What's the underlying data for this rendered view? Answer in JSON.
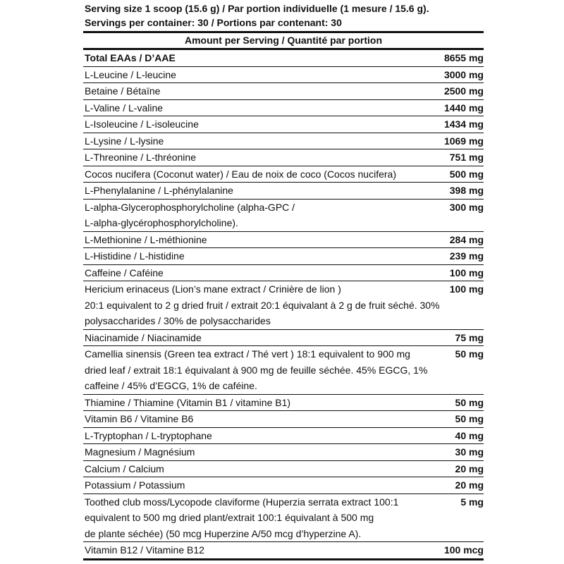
{
  "serving": {
    "size": "Serving size 1 scoop (15.6 g) / Par portion individuelle (1 mesure / 15.6 g).",
    "per_container": "Servings per container: 30 / Portions par contenant: 30"
  },
  "table": {
    "header": "Amount per Serving / Quantité par portion",
    "rows": [
      {
        "name": [
          "Total EAAs / D’AAE"
        ],
        "amount": "8655 mg"
      },
      {
        "name": [
          "L-Leucine / L-leucine"
        ],
        "amount": "3000 mg"
      },
      {
        "name": [
          "Betaine / Bétaïne"
        ],
        "amount": "2500 mg"
      },
      {
        "name": [
          "L-Valine / L-valine"
        ],
        "amount": "1440 mg"
      },
      {
        "name": [
          "L-Isoleucine / L-isoleucine"
        ],
        "amount": "1434 mg"
      },
      {
        "name": [
          "L-Lysine / L-lysine"
        ],
        "amount": "1069 mg"
      },
      {
        "name": [
          "L-Threonine / L-thréonine"
        ],
        "amount": "751 mg"
      },
      {
        "name": [
          "Cocos nucifera (Coconut water) / Eau de noix de coco (Cocos nucifera)"
        ],
        "amount": "500 mg"
      },
      {
        "name": [
          "L-Phenylalanine / L-phénylalanine"
        ],
        "amount": "398 mg"
      },
      {
        "name": [
          "L-alpha-Glycerophosphorylcholine (alpha-GPC /",
          "L-alpha-glycérophosphorylcholine)."
        ],
        "amount": "300 mg"
      },
      {
        "name": [
          "L-Methionine / L-méthionine"
        ],
        "amount": "284 mg"
      },
      {
        "name": [
          "L-Histidine / L-histidine"
        ],
        "amount": "239 mg"
      },
      {
        "name": [
          "Caffeine / Caféine"
        ],
        "amount": "100 mg"
      },
      {
        "name": [
          "Hericium erinaceus (Lion’s mane extract / Crinière de lion )",
          "20:1 equivalent to 2 g dried fruit / extrait 20:1 équivalant à 2 g de fruit séché. 30%",
          "polysaccharides / 30% de polysaccharides"
        ],
        "amount": "100 mg"
      },
      {
        "name": [
          "Niacinamide / Niacinamide"
        ],
        "amount": "75 mg"
      },
      {
        "name": [
          "Camellia sinensis (Green tea extract / Thé vert ) 18:1 equivalent to 900 mg",
          "dried leaf / extrait 18:1 équivalant à 900 mg de feuille séchée. 45% EGCG, 1%",
          "caffeine / 45% d’EGCG, 1% de caféine."
        ],
        "amount": "50 mg"
      },
      {
        "name": [
          "Thiamine / Thiamine (Vitamin B1 / vitamine B1)"
        ],
        "amount": "50 mg"
      },
      {
        "name": [
          "Vitamin B6 / Vitamine B6"
        ],
        "amount": "50 mg"
      },
      {
        "name": [
          "L-Tryptophan / L-tryptophane"
        ],
        "amount": "40 mg"
      },
      {
        "name": [
          "Magnesium / Magnésium"
        ],
        "amount": "30 mg"
      },
      {
        "name": [
          "Calcium / Calcium"
        ],
        "amount": "20 mg"
      },
      {
        "name": [
          "Potassium / Potassium"
        ],
        "amount": "20 mg"
      },
      {
        "name": [
          "Toothed club moss/Lycopode claviforme (Huperzia serrata extract 100:1",
          "equivalent to 500 mg dried plant/extrait 100:1 équivalant à 500 mg",
          "de plante séchée) (50 mcg Huperzine A/50 mcg d’hyperzine A)."
        ],
        "amount": "5 mg"
      },
      {
        "name": [
          "Vitamin B12 / Vitamine B12"
        ],
        "amount": "100 mcg"
      }
    ]
  }
}
